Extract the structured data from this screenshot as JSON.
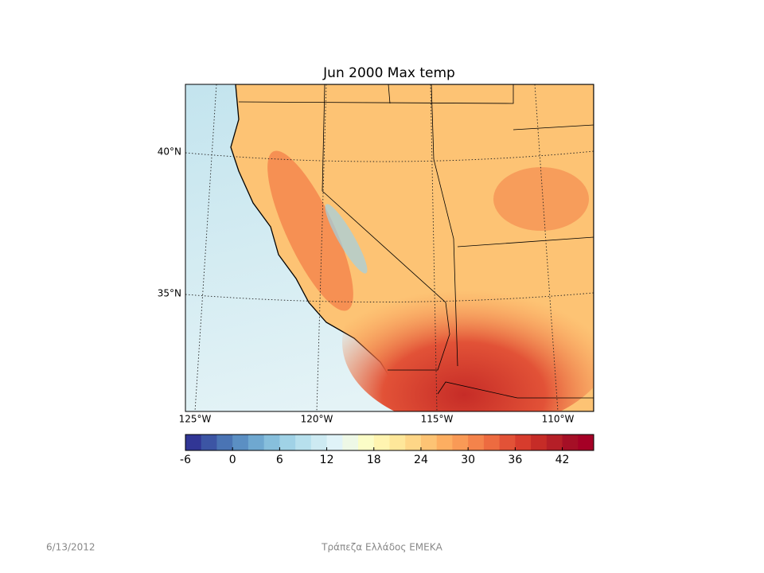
{
  "map": {
    "title": "Jun 2000 Max temp",
    "lat_labels": [
      "40°N",
      "35°N"
    ],
    "lon_labels": [
      "125°W",
      "120°W",
      "115°W",
      "110°W"
    ]
  },
  "colorbar": {
    "lim": [
      -6,
      46
    ],
    "ticks": [
      -6,
      0,
      6,
      12,
      18,
      24,
      30,
      36,
      42
    ],
    "colors": [
      "#313695",
      "#3c55a4",
      "#4a74b4",
      "#5b8fc3",
      "#6fa8d0",
      "#87bfdc",
      "#a0d2e6",
      "#b7e0ed",
      "#cdeaf2",
      "#e0f3f8",
      "#eef8e6",
      "#fbfdc7",
      "#fff4b0",
      "#fee79a",
      "#fed687",
      "#fdc374",
      "#fdae61",
      "#f99a56",
      "#f4834b",
      "#ed6b40",
      "#e25237",
      "#d73c2d",
      "#c62c27",
      "#b51f27",
      "#a50f26",
      "#a50026"
    ]
  },
  "footer": {
    "date": "6/13/2012",
    "organization": "Τράπεζα Ελλάδος ΕΜΕΚΑ"
  }
}
